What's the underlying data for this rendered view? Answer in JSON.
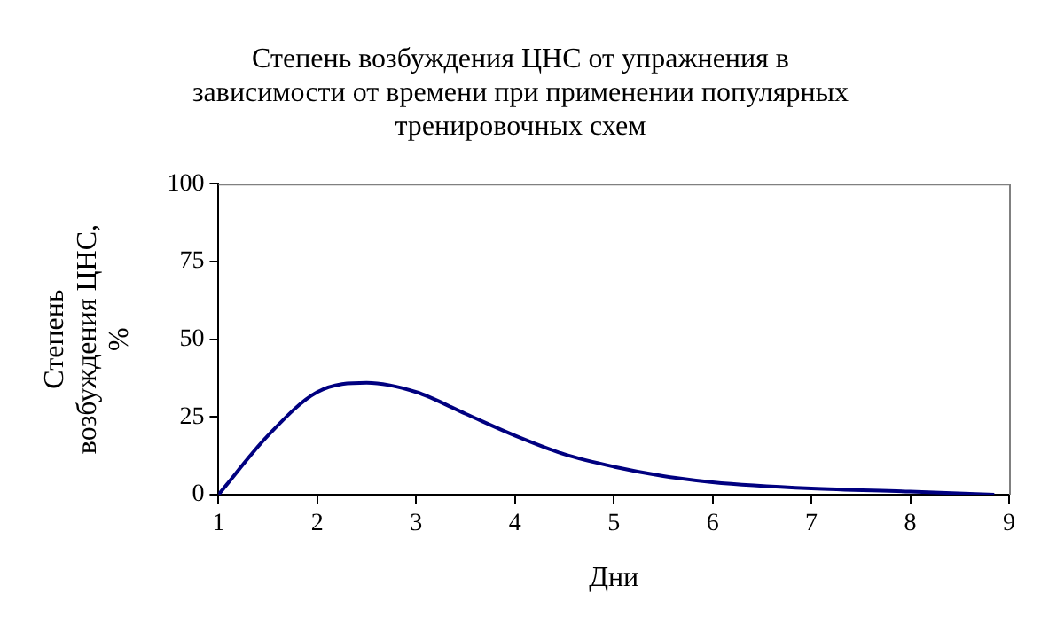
{
  "chart_data": {
    "type": "line",
    "title": "Степень возбуждения ЦНС от упражнения в зависимости от времени при применении популярных тренировочных схем",
    "xlabel": "Дни",
    "ylabel": "Степень возбуждения ЦНС, %",
    "x": [
      1,
      1.5,
      2,
      2.5,
      3,
      3.5,
      4,
      4.5,
      5,
      5.5,
      6,
      7,
      8,
      8.85
    ],
    "series": [
      {
        "color": "#000080",
        "values": [
          0,
          19,
          33,
          36,
          33,
          26,
          19,
          13,
          9,
          6,
          4,
          2,
          1,
          0
        ]
      }
    ],
    "xlim": [
      1,
      9
    ],
    "xticks": [
      1,
      2,
      3,
      4,
      5,
      6,
      7,
      8,
      9
    ],
    "ylim": [
      0,
      100
    ],
    "yticks": [
      0,
      25,
      50,
      75,
      100
    ],
    "grid": false,
    "legend": false,
    "marker": "none",
    "line_style": "solid"
  }
}
